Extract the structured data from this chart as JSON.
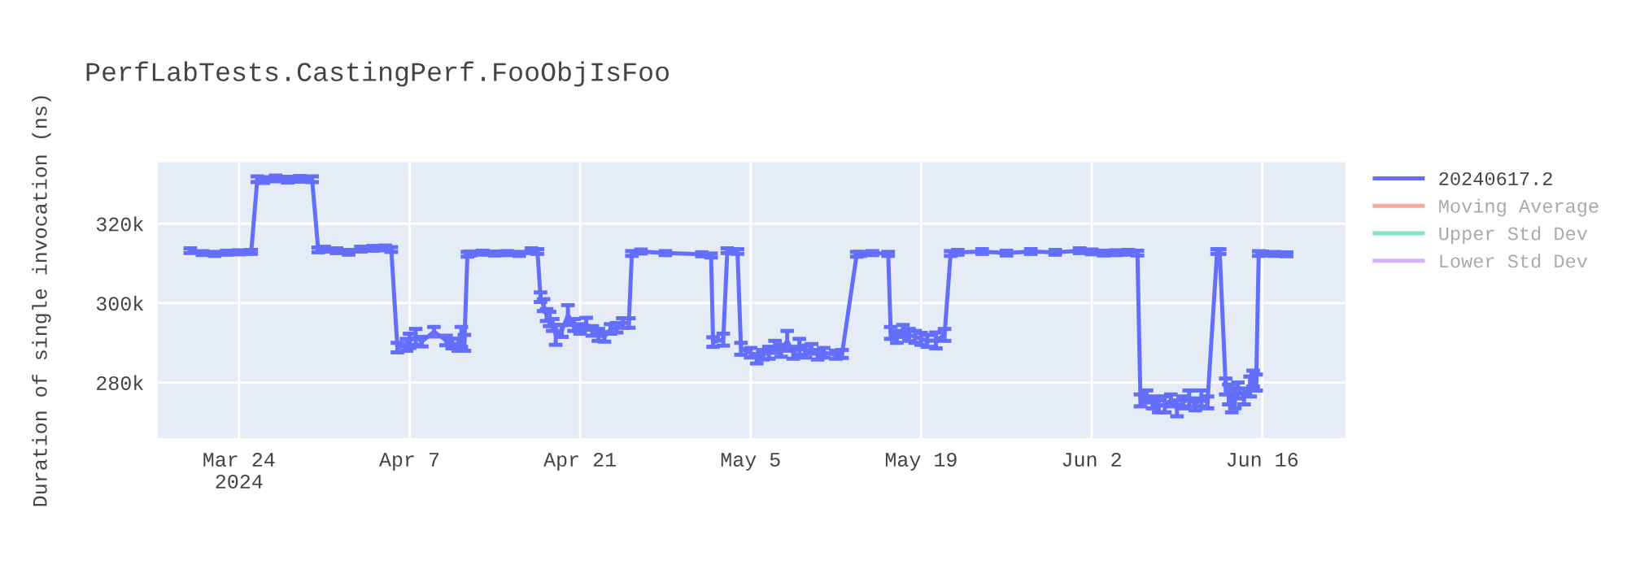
{
  "chart_data": {
    "type": "line",
    "title": "PerfLabTests.CastingPerf.FooObjIsFoo",
    "ylabel": "Duration of single invocation (ns)",
    "xlim": [
      "2024-03-17T08:00",
      "2024-06-22T20:00"
    ],
    "ylim": [
      266000,
      335500
    ],
    "xticks": [
      {
        "value": "2024-03-24",
        "label": "Mar 24\n2024"
      },
      {
        "value": "2024-04-07",
        "label": "Apr 7"
      },
      {
        "value": "2024-04-21",
        "label": "Apr 21"
      },
      {
        "value": "2024-05-05",
        "label": "May 5"
      },
      {
        "value": "2024-05-19",
        "label": "May 19"
      },
      {
        "value": "2024-06-02",
        "label": "Jun 2"
      },
      {
        "value": "2024-06-16",
        "label": "Jun 16"
      }
    ],
    "yticks": [
      {
        "value": 280000,
        "label": "280k"
      },
      {
        "value": 300000,
        "label": "300k"
      },
      {
        "value": 320000,
        "label": "320k"
      }
    ],
    "grid": true,
    "legend": "right",
    "marker": "none",
    "line_style": "solid",
    "series": [
      {
        "name": "20240617.2",
        "color": "#636efa",
        "x": [
          "2024-03-20",
          "2024-03-21",
          "2024-03-22",
          "2024-03-23",
          "2024-03-24",
          "2024-03-25",
          "2024-03-25T12:00",
          "2024-03-26",
          "2024-03-27",
          "2024-03-28",
          "2024-03-29",
          "2024-03-30",
          "2024-03-30T12:00",
          "2024-03-31",
          "2024-04-01",
          "2024-04-02",
          "2024-04-03",
          "2024-04-04",
          "2024-04-05",
          "2024-04-05T12:00",
          "2024-04-06",
          "2024-04-06T18:00",
          "2024-04-07",
          "2024-04-07T12:00",
          "2024-04-08",
          "2024-04-09",
          "2024-04-10",
          "2024-04-10T12:00",
          "2024-04-11",
          "2024-04-11T06:00",
          "2024-04-11T12:00",
          "2024-04-11T18:00",
          "2024-04-12",
          "2024-04-13",
          "2024-04-14",
          "2024-04-15",
          "2024-04-16",
          "2024-04-17",
          "2024-04-17T12:00",
          "2024-04-17T18:00",
          "2024-04-18",
          "2024-04-18T06:00",
          "2024-04-18T12:00",
          "2024-04-18T18:00",
          "2024-04-19",
          "2024-04-19T12:00",
          "2024-04-20",
          "2024-04-20T12:00",
          "2024-04-21",
          "2024-04-21T12:00",
          "2024-04-22",
          "2024-04-22T12:00",
          "2024-04-23",
          "2024-04-23T12:00",
          "2024-04-24",
          "2024-04-24T12:00",
          "2024-04-25",
          "2024-04-25T06:00",
          "2024-04-26",
          "2024-04-28",
          "2024-05-01",
          "2024-05-01T18:00",
          "2024-05-01T22:00",
          "2024-05-02T18:00",
          "2024-05-03T02:00",
          "2024-05-03T22:00",
          "2024-05-04T05:00",
          "2024-05-05",
          "2024-05-05T12:00",
          "2024-05-06",
          "2024-05-06T12:00",
          "2024-05-07",
          "2024-05-07T12:00",
          "2024-05-08",
          "2024-05-08T12:00",
          "2024-05-09",
          "2024-05-09T12:00",
          "2024-05-10",
          "2024-05-10T12:00",
          "2024-05-11",
          "2024-05-12",
          "2024-05-12T12:00",
          "2024-05-13T17:00",
          "2024-05-14",
          "2024-05-15",
          "2024-05-16T07:00",
          "2024-05-16T12:00",
          "2024-05-17",
          "2024-05-17T12:00",
          "2024-05-18",
          "2024-05-18T12:00",
          "2024-05-19",
          "2024-05-19T12:00",
          "2024-05-20T05:00",
          "2024-05-20T22:00",
          "2024-05-21T10:00",
          "2024-05-22",
          "2024-05-24",
          "2024-05-26",
          "2024-05-28",
          "2024-05-30",
          "2024-06-01",
          "2024-06-02",
          "2024-06-03",
          "2024-06-04",
          "2024-06-05",
          "2024-06-05T18:00",
          "2024-06-06",
          "2024-06-06T12:00",
          "2024-06-07",
          "2024-06-07T12:00",
          "2024-06-08",
          "2024-06-08T12:00",
          "2024-06-09",
          "2024-06-09T12:00",
          "2024-06-10",
          "2024-06-10T12:00",
          "2024-06-11",
          "2024-06-11T12:00",
          "2024-06-12T07:00",
          "2024-06-12T12:00",
          "2024-06-13",
          "2024-06-13T06:00",
          "2024-06-13T12:00",
          "2024-06-13T18:00",
          "2024-06-14",
          "2024-06-14T12:00",
          "2024-06-15",
          "2024-06-15T06:00",
          "2024-06-15T12:00",
          "2024-06-15T17:00",
          "2024-06-16",
          "2024-06-17",
          "2024-06-18"
        ],
        "values": [
          313200,
          312600,
          312400,
          312700,
          312800,
          312900,
          331200,
          331000,
          331400,
          331100,
          331300,
          331200,
          313400,
          313600,
          313200,
          312800,
          313600,
          313800,
          313900,
          313500,
          288800,
          289500,
          290500,
          291500,
          290300,
          292800,
          290600,
          289800,
          289500,
          291500,
          290000,
          312300,
          312500,
          312700,
          312500,
          312600,
          312400,
          313200,
          313000,
          301500,
          299500,
          297000,
          296000,
          294500,
          292000,
          293000,
          297000,
          294500,
          293500,
          294800,
          293000,
          292000,
          291500,
          293500,
          293800,
          295000,
          295000,
          312500,
          313000,
          312600,
          312300,
          312000,
          290200,
          290800,
          313200,
          313000,
          288500,
          287500,
          286000,
          287000,
          287500,
          289000,
          288000,
          290500,
          287500,
          289000,
          287800,
          288500,
          287000,
          287500,
          287000,
          287200,
          312300,
          312400,
          312600,
          312400,
          292500,
          291500,
          293000,
          292000,
          291500,
          291000,
          290500,
          290600,
          292000,
          312500,
          312800,
          313000,
          312600,
          313000,
          312800,
          313200,
          312900,
          312600,
          312700,
          312800,
          312600,
          275500,
          276500,
          275000,
          274000,
          274500,
          275500,
          273500,
          275000,
          276000,
          274500,
          276000,
          275000,
          313000,
          313000,
          279000,
          277000,
          275000,
          276000,
          278000,
          276500,
          279000,
          281000,
          280000,
          312500,
          312500,
          312400,
          312300
        ],
        "errors": [
          600,
          500,
          500,
          500,
          500,
          500,
          700,
          700,
          700,
          700,
          700,
          700,
          600,
          600,
          600,
          600,
          600,
          600,
          600,
          600,
          1200,
          1500,
          1800,
          2000,
          1200,
          1200,
          1200,
          1200,
          1500,
          2500,
          2000,
          600,
          500,
          500,
          500,
          500,
          500,
          600,
          600,
          1200,
          1500,
          1500,
          1800,
          1500,
          2500,
          1500,
          2500,
          1500,
          1200,
          1500,
          1200,
          1500,
          1200,
          1200,
          1200,
          1200,
          1200,
          600,
          500,
          500,
          500,
          500,
          1200,
          1500,
          600,
          600,
          1500,
          1200,
          1200,
          1200,
          1500,
          1500,
          1500,
          2500,
          1500,
          2000,
          1500,
          1200,
          1200,
          1200,
          1000,
          1000,
          600,
          500,
          500,
          500,
          1500,
          1500,
          1500,
          1500,
          1500,
          1500,
          1500,
          2000,
          1500,
          600,
          600,
          600,
          600,
          600,
          600,
          600,
          600,
          600,
          600,
          600,
          600,
          1500,
          1500,
          1500,
          1500,
          2000,
          1500,
          2000,
          1500,
          2000,
          1500,
          2000,
          1500,
          600,
          600,
          2000,
          2500,
          2500,
          2500,
          2000,
          2000,
          2500,
          2000,
          2000,
          600,
          500,
          500,
          500
        ]
      },
      {
        "name": "Moving Average",
        "color": "#ef553b"
      },
      {
        "name": "Upper Std Dev",
        "color": "#00cc96"
      },
      {
        "name": "Lower Std Dev",
        "color": "#ab63fa"
      }
    ]
  }
}
